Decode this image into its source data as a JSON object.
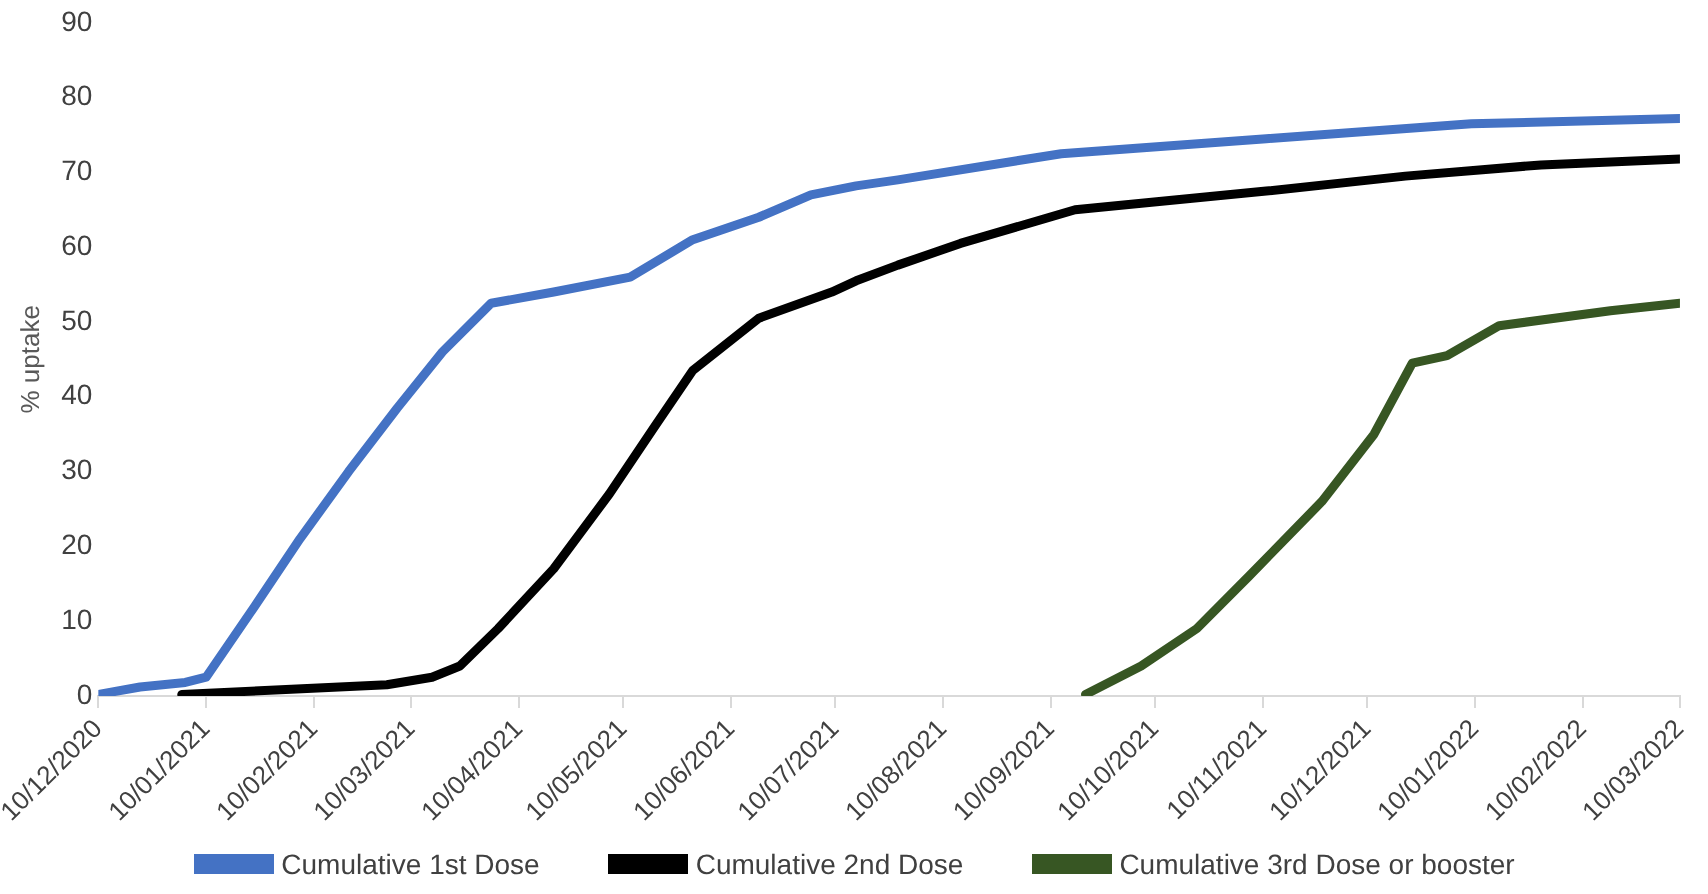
{
  "chart_data": {
    "type": "line",
    "ylabel": "% uptake",
    "xlim": [
      "2020-12-10",
      "2022-03-10"
    ],
    "xticks": [
      {
        "value": "2020-12-10",
        "label": "10/12/2020"
      },
      {
        "value": "2021-01-10",
        "label": "10/01/2021"
      },
      {
        "value": "2021-02-10",
        "label": "10/02/2021"
      },
      {
        "value": "2021-03-10",
        "label": "10/03/2021"
      },
      {
        "value": "2021-04-10",
        "label": "10/04/2021"
      },
      {
        "value": "2021-05-10",
        "label": "10/05/2021"
      },
      {
        "value": "2021-06-10",
        "label": "10/06/2021"
      },
      {
        "value": "2021-07-10",
        "label": "10/07/2021"
      },
      {
        "value": "2021-08-10",
        "label": "10/08/2021"
      },
      {
        "value": "2021-09-10",
        "label": "10/09/2021"
      },
      {
        "value": "2021-10-10",
        "label": "10/10/2021"
      },
      {
        "value": "2021-11-10",
        "label": "10/11/2021"
      },
      {
        "value": "2021-12-10",
        "label": "10/12/2021"
      },
      {
        "value": "2022-01-10",
        "label": "10/01/2022"
      },
      {
        "value": "2022-02-10",
        "label": "10/02/2022"
      },
      {
        "value": "2022-03-10",
        "label": "10/03/2022"
      }
    ],
    "ylim": [
      0,
      90
    ],
    "yticks": [
      0,
      10,
      20,
      30,
      40,
      50,
      60,
      70,
      80,
      90
    ],
    "grid": false,
    "legend": "bottom",
    "marker": "none",
    "line_style": "solid",
    "series": [
      {
        "name": "Cumulative 1st Dose",
        "color": "#4472c4",
        "x": [
          "2020-12-10",
          "2020-12-22",
          "2021-01-04",
          "2021-01-10",
          "2021-01-24",
          "2021-02-06",
          "2021-02-20",
          "2021-03-06",
          "2021-03-19",
          "2021-04-02",
          "2021-04-20",
          "2021-05-12",
          "2021-05-30",
          "2021-06-18",
          "2021-07-03",
          "2021-07-16",
          "2021-07-28",
          "2021-09-13",
          "2021-11-11",
          "2022-01-09",
          "2022-03-10"
        ],
        "values": [
          0.2,
          1.2,
          1.8,
          2.5,
          12,
          21,
          30,
          38.5,
          46,
          52.5,
          54,
          56,
          61,
          64,
          67,
          68.2,
          69,
          72.5,
          74.5,
          76.5,
          77.2
        ]
      },
      {
        "name": "Cumulative 2nd Dose",
        "color": "#000000",
        "x": [
          "2021-01-03",
          "2021-03-03",
          "2021-03-16",
          "2021-03-24",
          "2021-04-04",
          "2021-04-20",
          "2021-05-06",
          "2021-05-19",
          "2021-05-30",
          "2021-06-18",
          "2021-07-09",
          "2021-07-16",
          "2021-07-28",
          "2021-08-15",
          "2021-09-17",
          "2021-11-11",
          "2021-12-21",
          "2022-01-29",
          "2022-03-10"
        ],
        "values": [
          0.2,
          1.5,
          2.5,
          4,
          9,
          17,
          27,
          36,
          43.5,
          50.5,
          54,
          55.5,
          57.6,
          60.5,
          65,
          67.5,
          69.5,
          71,
          71.8
        ]
      },
      {
        "name": "Cumulative 3rd Dose or booster",
        "color": "#375623",
        "x": [
          "2021-09-20",
          "2021-10-06",
          "2021-10-22",
          "2021-11-06",
          "2021-11-27",
          "2021-12-12",
          "2021-12-23",
          "2022-01-02",
          "2022-01-17",
          "2022-02-18",
          "2022-03-10"
        ],
        "values": [
          0.2,
          4,
          9,
          16,
          26,
          35,
          44.5,
          45.5,
          49.5,
          51.5,
          52.5
        ]
      }
    ]
  }
}
